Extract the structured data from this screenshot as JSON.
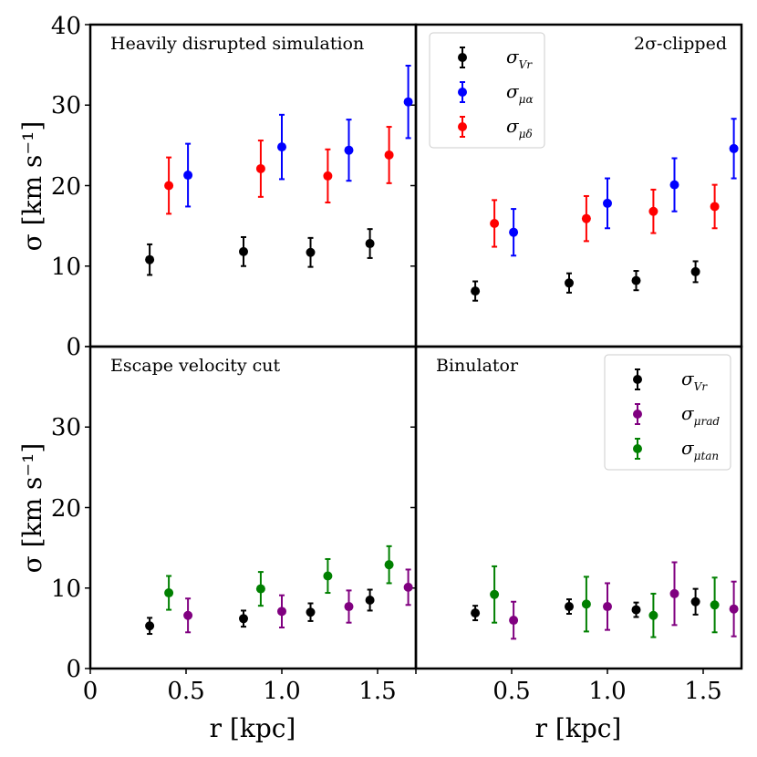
{
  "figure": {
    "ylabel": "σ [km s⁻¹]",
    "xlabel": "r [kpc]",
    "yticks": [
      "0",
      "10",
      "20",
      "30",
      "40"
    ],
    "xticks_left": [
      "0",
      "0.5",
      "1.0",
      "1.5"
    ],
    "xticks_right": [
      "0.5",
      "1.0",
      "1.5"
    ]
  },
  "colors": {
    "vr": "#000000",
    "alpha": "#0000ff",
    "delta": "#ff0000",
    "rad": "#800080",
    "tan": "#008000"
  },
  "legends": {
    "top": [
      {
        "symbol": "σ",
        "sub": "Vr",
        "series": "vr"
      },
      {
        "symbol": "σ",
        "sub": "μα",
        "series": "alpha"
      },
      {
        "symbol": "σ",
        "sub": "μδ",
        "series": "delta"
      }
    ],
    "bottom": [
      {
        "symbol": "σ",
        "sub": "Vr",
        "series": "vr"
      },
      {
        "symbol": "σ",
        "sub": "μrad",
        "series": "rad"
      },
      {
        "symbol": "σ",
        "sub": "μtan",
        "series": "tan"
      }
    ]
  },
  "chart_data": [
    {
      "type": "scatter",
      "panel": "top-left",
      "title": "Heavily disrupted simulation",
      "xlabel": "",
      "ylabel": "σ [km s⁻¹]",
      "xlim": [
        0,
        1.7
      ],
      "ylim": [
        0,
        40
      ],
      "series": [
        {
          "name": "σ_Vr",
          "key": "vr",
          "x": [
            0.31,
            0.8,
            1.15,
            1.46
          ],
          "y": [
            10.8,
            11.8,
            11.7,
            12.8
          ],
          "err": [
            1.9,
            1.8,
            1.8,
            1.8
          ]
        },
        {
          "name": "σ_μα",
          "key": "alpha",
          "x": [
            0.51,
            1.0,
            1.35,
            1.66
          ],
          "y": [
            21.3,
            24.8,
            24.4,
            30.4
          ],
          "err": [
            3.9,
            4.0,
            3.8,
            4.5
          ]
        },
        {
          "name": "σ_μδ",
          "key": "delta",
          "x": [
            0.41,
            0.89,
            1.24,
            1.56
          ],
          "y": [
            20.0,
            22.1,
            21.2,
            23.8
          ],
          "err": [
            3.5,
            3.5,
            3.3,
            3.5
          ]
        }
      ]
    },
    {
      "type": "scatter",
      "panel": "top-right",
      "title": "2σ-clipped",
      "xlabel": "",
      "ylabel": "",
      "xlim": [
        0,
        1.7
      ],
      "ylim": [
        0,
        40
      ],
      "series": [
        {
          "name": "σ_Vr",
          "key": "vr",
          "x": [
            0.31,
            0.8,
            1.15,
            1.46
          ],
          "y": [
            6.9,
            7.9,
            8.2,
            9.3
          ],
          "err": [
            1.2,
            1.2,
            1.2,
            1.3
          ]
        },
        {
          "name": "σ_μα",
          "key": "alpha",
          "x": [
            0.51,
            1.0,
            1.35,
            1.66
          ],
          "y": [
            14.2,
            17.8,
            20.1,
            24.6
          ],
          "err": [
            2.9,
            3.1,
            3.3,
            3.7
          ]
        },
        {
          "name": "σ_μδ",
          "key": "delta",
          "x": [
            0.41,
            0.89,
            1.24,
            1.56
          ],
          "y": [
            15.3,
            15.9,
            16.8,
            17.4
          ],
          "err": [
            2.9,
            2.8,
            2.7,
            2.7
          ]
        }
      ]
    },
    {
      "type": "scatter",
      "panel": "bottom-left",
      "title": "Escape velocity cut",
      "xlabel": "r [kpc]",
      "ylabel": "σ [km s⁻¹]",
      "xlim": [
        0,
        1.7
      ],
      "ylim": [
        0,
        40
      ],
      "series": [
        {
          "name": "σ_Vr",
          "key": "vr",
          "x": [
            0.31,
            0.8,
            1.15,
            1.46
          ],
          "y": [
            5.3,
            6.2,
            7.0,
            8.5
          ],
          "err": [
            1.0,
            1.0,
            1.1,
            1.3
          ]
        },
        {
          "name": "σ_μrad",
          "key": "rad",
          "x": [
            0.51,
            1.0,
            1.35,
            1.66
          ],
          "y": [
            6.6,
            7.1,
            7.7,
            10.1
          ],
          "err": [
            2.1,
            2.0,
            2.0,
            2.2
          ]
        },
        {
          "name": "σ_μtan",
          "key": "tan",
          "x": [
            0.41,
            0.89,
            1.24,
            1.56
          ],
          "y": [
            9.4,
            9.9,
            11.5,
            12.9
          ],
          "err": [
            2.1,
            2.1,
            2.1,
            2.3
          ]
        }
      ]
    },
    {
      "type": "scatter",
      "panel": "bottom-right",
      "title": "Binulator",
      "xlabel": "r [kpc]",
      "ylabel": "",
      "xlim": [
        0,
        1.7
      ],
      "ylim": [
        0,
        40
      ],
      "series": [
        {
          "name": "σ_Vr",
          "key": "vr",
          "x": [
            0.31,
            0.8,
            1.15,
            1.46
          ],
          "y": [
            6.9,
            7.7,
            7.3,
            8.3
          ],
          "err": [
            0.9,
            0.9,
            0.9,
            1.6
          ]
        },
        {
          "name": "σ_μrad",
          "key": "rad",
          "x": [
            0.51,
            1.0,
            1.35,
            1.66
          ],
          "y": [
            6.0,
            7.7,
            9.3,
            7.4
          ],
          "err": [
            2.3,
            2.9,
            3.9,
            3.4
          ]
        },
        {
          "name": "σ_μtan",
          "key": "tan",
          "x": [
            0.41,
            0.89,
            1.24,
            1.56
          ],
          "y": [
            9.2,
            8.0,
            6.6,
            7.9
          ],
          "err": [
            3.5,
            3.4,
            2.7,
            3.4
          ]
        }
      ]
    }
  ]
}
